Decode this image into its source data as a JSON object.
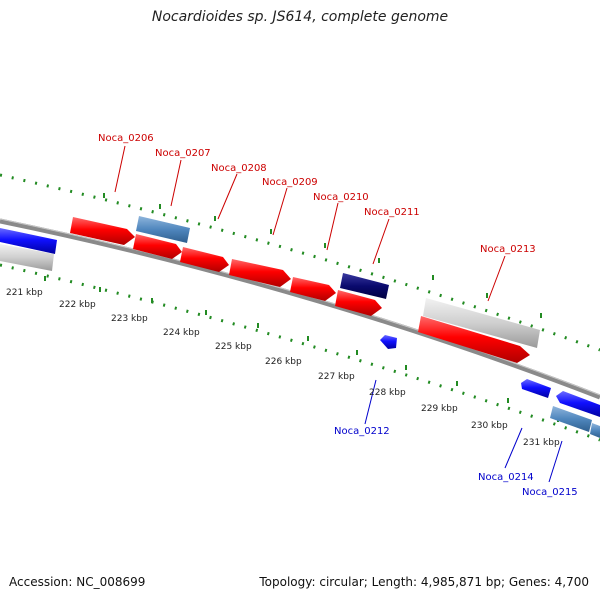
{
  "title": "Nocardioides sp. JS614, complete genome",
  "footer": {
    "accession": "Accession: NC_008699",
    "summary": "Topology: circular; Length: 4,985,871 bp; Genes: 4,700"
  },
  "colors": {
    "forward_gene": "#ff0000",
    "reverse_gene": "#0000ff",
    "forward_label": "#cc0000",
    "reverse_label": "#0000cc",
    "tick_marks": "#228b22",
    "backbone": "#888888"
  },
  "ticks": [
    "221 kbp",
    "222 kbp",
    "223 kbp",
    "224 kbp",
    "225 kbp",
    "226 kbp",
    "227 kbp",
    "228 kbp",
    "229 kbp",
    "230 kbp",
    "231 kbp"
  ],
  "forward_labels": [
    "Noca_0206",
    "Noca_0207",
    "Noca_0208",
    "Noca_0209",
    "Noca_0210",
    "Noca_0211",
    "Noca_0213"
  ],
  "reverse_labels": [
    "Noca_0212",
    "Noca_0214",
    "Noca_0215"
  ]
}
